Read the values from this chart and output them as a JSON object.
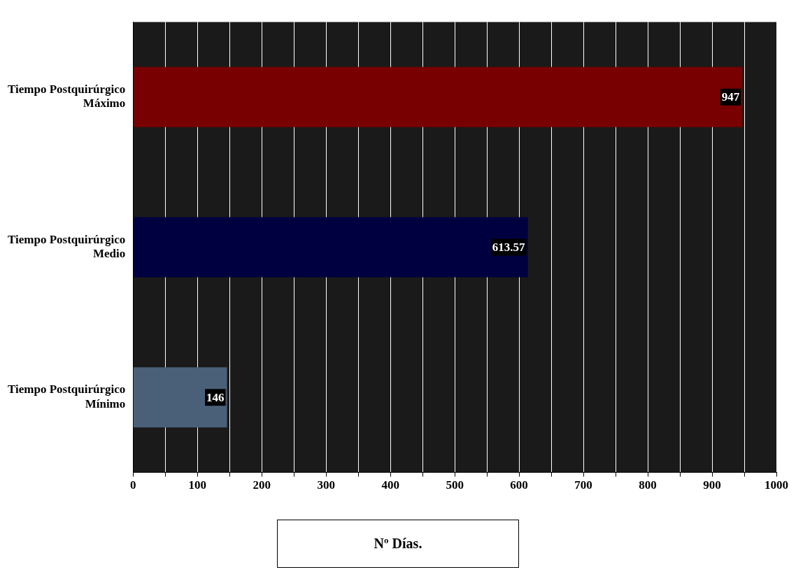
{
  "chart_data": {
    "type": "bar",
    "orientation": "horizontal",
    "xlabel": "Nº Días.",
    "categories": [
      "Tiempo Postquirúrgico Máximo",
      "Tiempo Postquirúrgico Medio",
      "Tiempo Postquirúrgico Mínimo"
    ],
    "values": [
      947,
      613.57,
      146
    ],
    "colors": [
      "#780000",
      "#000040",
      "#4a6078"
    ],
    "xlim": [
      0,
      1000
    ],
    "xticks": [
      0,
      {
        "value": 50,
        "label": null
      },
      100,
      {
        "value": 150,
        "label": null
      },
      200,
      {
        "value": 250,
        "label": null
      },
      300,
      {
        "value": 350,
        "label": null
      },
      400,
      {
        "value": 450,
        "label": null
      },
      500,
      {
        "value": 550,
        "label": null
      },
      600,
      {
        "value": 650,
        "label": null
      },
      700,
      {
        "value": 750,
        "label": null
      },
      800,
      {
        "value": 850,
        "label": null
      },
      900,
      {
        "value": 950,
        "label": null
      },
      1000
    ],
    "grid": "x",
    "data_labels": true,
    "legend": false
  }
}
